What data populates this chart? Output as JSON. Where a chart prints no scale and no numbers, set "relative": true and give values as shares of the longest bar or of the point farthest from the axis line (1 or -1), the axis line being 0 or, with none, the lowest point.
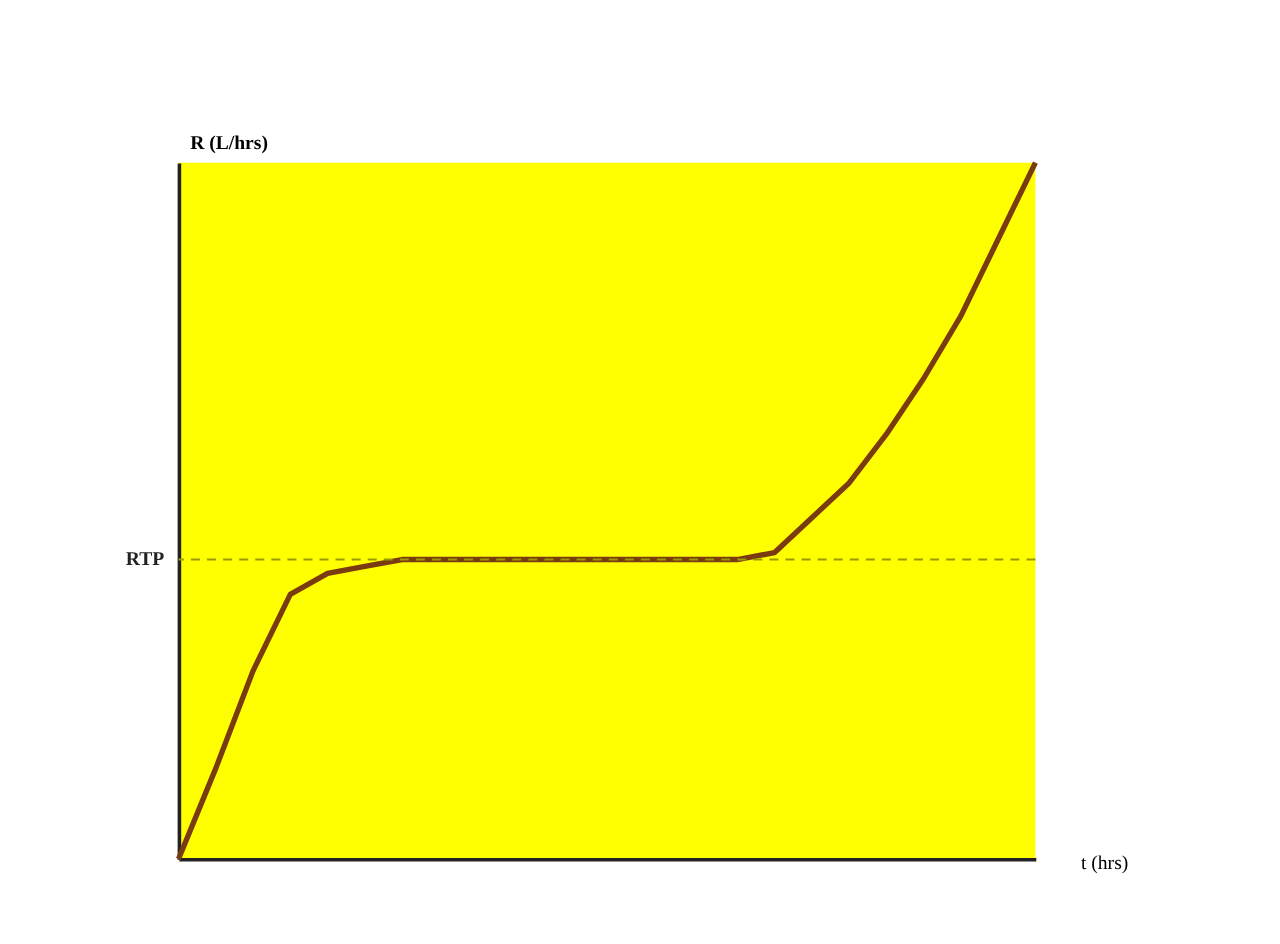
{
  "chart_data": {
    "type": "line",
    "relative": true,
    "xlabel": "t (hrs)",
    "ylabel": "R (L/hrs)",
    "categories": [
      null,
      null,
      null,
      null,
      null,
      null,
      null,
      null,
      null,
      null,
      null,
      null,
      null,
      null,
      null,
      null,
      null,
      null,
      null,
      null,
      null,
      null,
      null,
      null
    ],
    "series": [
      {
        "color": "#7a3b10",
        "values": [
          0,
          0.13,
          0.27,
          0.38,
          0.41,
          0.42,
          0.43,
          0.43,
          0.43,
          0.43,
          0.43,
          0.43,
          0.43,
          0.43,
          0.43,
          0.43,
          0.44,
          0.49,
          0.54,
          0.61,
          0.69,
          0.78,
          0.89,
          1
        ]
      }
    ],
    "ref_lines": [
      {
        "axis": "y",
        "value": 0.43,
        "label": "RTP",
        "color": "#999900",
        "line_style": "dashed"
      }
    ],
    "grid": false,
    "legend": false,
    "marker": "none",
    "line_style": "solid"
  }
}
